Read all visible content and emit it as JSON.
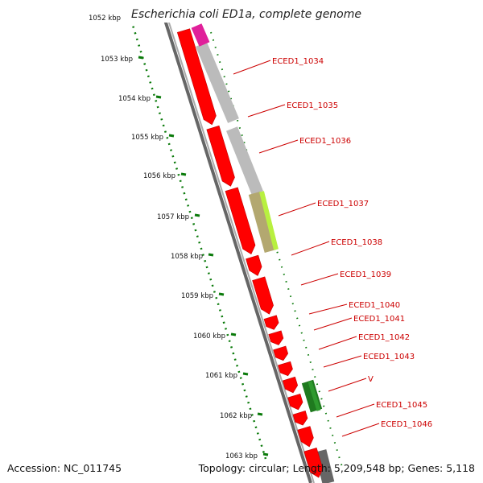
{
  "title": "Escherichia coli ED1a, complete genome",
  "accession": "Accession: NC_011745",
  "summary": "Topology: circular; Length: 5,209,548 bp; Genes: 5,118",
  "kbp_labels": [
    "1052 kbp",
    "1053 kbp",
    "1054 kbp",
    "1055 kbp",
    "1056 kbp",
    "1057 kbp",
    "1058 kbp",
    "1059 kbp",
    "1060 kbp",
    "1061 kbp",
    "1062 kbp",
    "1063 kbp"
  ],
  "gene_labels": [
    "ECED1_1034",
    "ECED1_1035",
    "ECED1_1036",
    "ECED1_1037",
    "ECED1_1038",
    "ECED1_1039",
    "ECED1_1040",
    "ECED1_1041",
    "ECED1_1042",
    "ECED1_1043",
    "V",
    "ECED1_1045",
    "ECED1_1046"
  ],
  "colors": {
    "cds": "#ff0000",
    "backbone": "#777777",
    "label": "#cc0000",
    "ruler": "#0a7a0a",
    "magenta": "#e0209a",
    "gray_feature": "#bbbbbb",
    "lime": "#b8f040",
    "olive": "#b3a870",
    "green": "#1f7a1f",
    "dark_gray": "#666666"
  }
}
